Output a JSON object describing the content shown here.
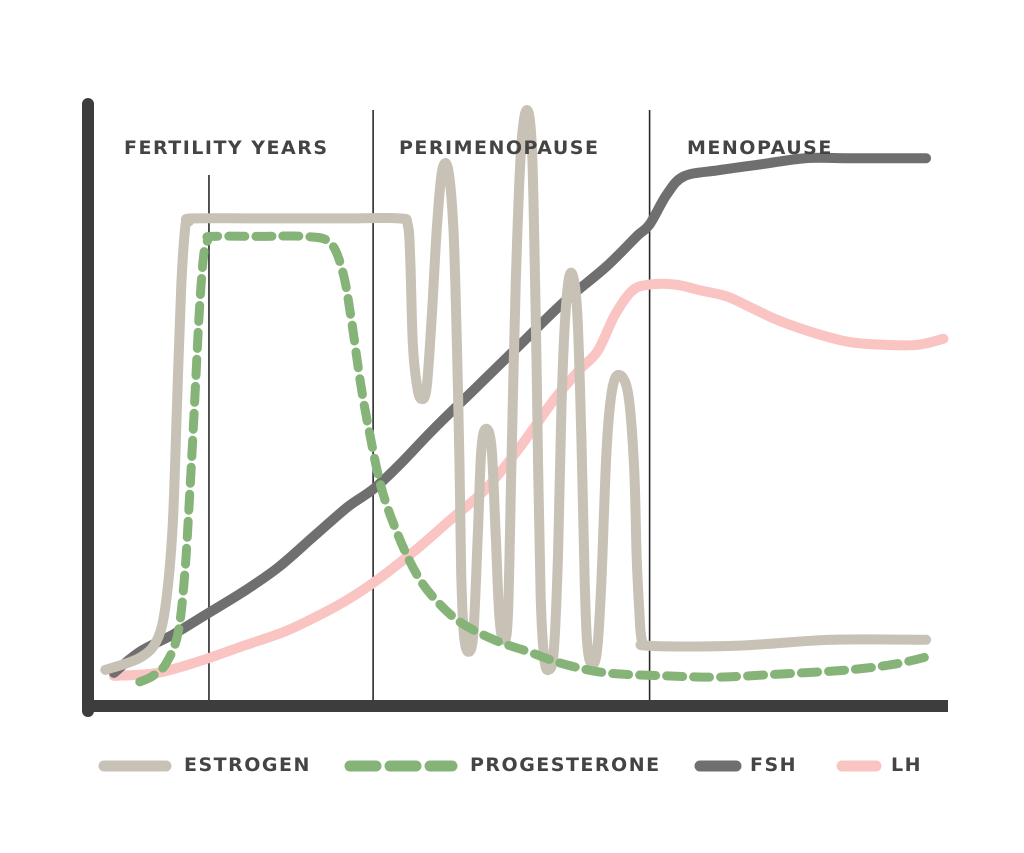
{
  "chart_data": {
    "type": "line",
    "title": "",
    "xlabel": "",
    "ylabel": "",
    "x_axis_ticks": false,
    "y_axis_ticks": false,
    "grid": false,
    "legend_position": "bottom",
    "phases": [
      {
        "label": "FERTILITY YEARS",
        "x_start": 0,
        "x_end": 33
      },
      {
        "label": "PERIMENOPAUSE",
        "x_start": 33,
        "x_end": 65
      },
      {
        "label": "MENOPAUSE",
        "x_start": 65,
        "x_end": 100
      }
    ],
    "reference_lines": [
      14,
      33,
      65
    ],
    "xlim": [
      0,
      100
    ],
    "ylim": [
      0,
      100
    ],
    "series": [
      {
        "name": "ESTROGEN",
        "color": "#c8c1b6",
        "style": "solid",
        "points": [
          [
            2,
            6
          ],
          [
            6,
            8
          ],
          [
            8,
            11
          ],
          [
            9,
            17
          ],
          [
            9.8,
            30
          ],
          [
            10.3,
            50
          ],
          [
            10.8,
            70
          ],
          [
            11.3,
            80
          ],
          [
            11.7,
            80.5
          ],
          [
            12,
            81
          ],
          [
            20,
            81
          ],
          [
            30,
            81
          ],
          [
            36,
            81
          ],
          [
            37,
            80
          ],
          [
            37.3,
            74
          ],
          [
            37.6,
            60
          ],
          [
            38.1,
            53
          ],
          [
            38.6,
            51
          ],
          [
            39.2,
            53
          ],
          [
            39.8,
            65
          ],
          [
            40.4,
            80
          ],
          [
            41,
            89
          ],
          [
            41.7,
            89
          ],
          [
            42.3,
            79
          ],
          [
            42.7,
            60
          ],
          [
            43,
            40
          ],
          [
            43.2,
            22
          ],
          [
            43.5,
            12
          ],
          [
            44,
            9
          ],
          [
            44.6,
            12
          ],
          [
            45.1,
            28
          ],
          [
            45.5,
            42
          ],
          [
            46,
            46
          ],
          [
            46.7,
            43
          ],
          [
            47.2,
            28
          ],
          [
            47.6,
            15
          ],
          [
            48.1,
            11
          ],
          [
            48.6,
            15
          ],
          [
            49,
            40
          ],
          [
            49.5,
            70
          ],
          [
            50.1,
            92
          ],
          [
            50.8,
            99
          ],
          [
            51.4,
            92
          ],
          [
            51.8,
            66
          ],
          [
            52.1,
            40
          ],
          [
            52.4,
            18
          ],
          [
            52.8,
            8
          ],
          [
            53.3,
            6
          ],
          [
            53.9,
            9
          ],
          [
            54.4,
            25
          ],
          [
            54.8,
            50
          ],
          [
            55.3,
            66
          ],
          [
            55.9,
            72
          ],
          [
            56.6,
            66
          ],
          [
            57.1,
            45
          ],
          [
            57.5,
            20
          ],
          [
            57.8,
            10
          ],
          [
            58.3,
            7
          ],
          [
            58.9,
            9
          ],
          [
            59.4,
            20
          ],
          [
            60,
            42
          ],
          [
            60.6,
            52
          ],
          [
            61.4,
            55
          ],
          [
            62.5,
            52
          ],
          [
            63.2,
            40
          ],
          [
            63.5,
            25
          ],
          [
            63.8,
            16
          ],
          [
            64.1,
            11
          ],
          [
            65,
            10
          ],
          [
            75,
            10
          ],
          [
            86,
            11
          ],
          [
            97,
            11
          ]
        ]
      },
      {
        "name": "PROGESTERONE",
        "color": "#86b478",
        "style": "dashed",
        "points": [
          [
            6,
            4
          ],
          [
            7.5,
            5
          ],
          [
            9,
            7
          ],
          [
            10.4,
            12
          ],
          [
            11.2,
            22
          ],
          [
            11.8,
            36
          ],
          [
            12.4,
            52
          ],
          [
            12.9,
            66
          ],
          [
            13.4,
            75
          ],
          [
            13.9,
            77.5
          ],
          [
            14.3,
            78
          ],
          [
            20,
            78
          ],
          [
            25,
            78
          ],
          [
            28,
            77
          ],
          [
            29.5,
            72
          ],
          [
            30.5,
            64
          ],
          [
            31.5,
            54
          ],
          [
            32.5,
            46
          ],
          [
            34,
            36
          ],
          [
            36,
            28
          ],
          [
            38,
            22
          ],
          [
            40,
            18
          ],
          [
            43,
            14
          ],
          [
            47,
            11
          ],
          [
            51,
            9
          ],
          [
            55,
            7
          ],
          [
            60,
            5.5
          ],
          [
            67,
            5
          ],
          [
            73,
            4.8
          ],
          [
            80,
            5.3
          ],
          [
            88,
            6
          ],
          [
            93.5,
            7
          ],
          [
            98,
            8.5
          ]
        ]
      },
      {
        "name": "FSH",
        "color": "#6f6f6f",
        "style": "solid",
        "points": [
          [
            3,
            5.5
          ],
          [
            6,
            9
          ],
          [
            10,
            12
          ],
          [
            14,
            15.5
          ],
          [
            18,
            19
          ],
          [
            22,
            23
          ],
          [
            26,
            28
          ],
          [
            30,
            33
          ],
          [
            33,
            36
          ],
          [
            36,
            40
          ],
          [
            40,
            46
          ],
          [
            45,
            53
          ],
          [
            50,
            60
          ],
          [
            55,
            67
          ],
          [
            60,
            73
          ],
          [
            63.5,
            78
          ],
          [
            65,
            80
          ],
          [
            67,
            85
          ],
          [
            69,
            88
          ],
          [
            73,
            89
          ],
          [
            78,
            90
          ],
          [
            83,
            91
          ],
          [
            88,
            91
          ],
          [
            93,
            91
          ],
          [
            97,
            91
          ]
        ]
      },
      {
        "name": "LH",
        "color": "#f9c4c2",
        "style": "solid",
        "points": [
          [
            3,
            5
          ],
          [
            8,
            5.5
          ],
          [
            13,
            7.5
          ],
          [
            18,
            10
          ],
          [
            23,
            12.5
          ],
          [
            28,
            16
          ],
          [
            31,
            18.5
          ],
          [
            34,
            21.5
          ],
          [
            38,
            26
          ],
          [
            42,
            31
          ],
          [
            46,
            36
          ],
          [
            50,
            43
          ],
          [
            54,
            51
          ],
          [
            57,
            56
          ],
          [
            59,
            59
          ],
          [
            61,
            65
          ],
          [
            63,
            69
          ],
          [
            65,
            70
          ],
          [
            68,
            70
          ],
          [
            71,
            69
          ],
          [
            74,
            68
          ],
          [
            77,
            66
          ],
          [
            80,
            64
          ],
          [
            84,
            62
          ],
          [
            88,
            60.5
          ],
          [
            92,
            60
          ],
          [
            96,
            60
          ],
          [
            99,
            61
          ]
        ]
      }
    ]
  },
  "phase_labels": [
    "FERTILITY YEARS",
    "PERIMENOPAUSE",
    "MENOPAUSE"
  ],
  "legend": [
    {
      "label": "ESTROGEN",
      "color": "#c8c1b6",
      "style": "solid"
    },
    {
      "label": "PROGESTERONE",
      "color": "#86b478",
      "style": "dashed"
    },
    {
      "label": "FSH",
      "color": "#6f6f6f",
      "style": "solid"
    },
    {
      "label": "LH",
      "color": "#f9c4c2",
      "style": "solid"
    }
  ],
  "colors": {
    "axis": "#3d3d3d",
    "divider": "#2a2a2a",
    "label_text": "#444444"
  }
}
